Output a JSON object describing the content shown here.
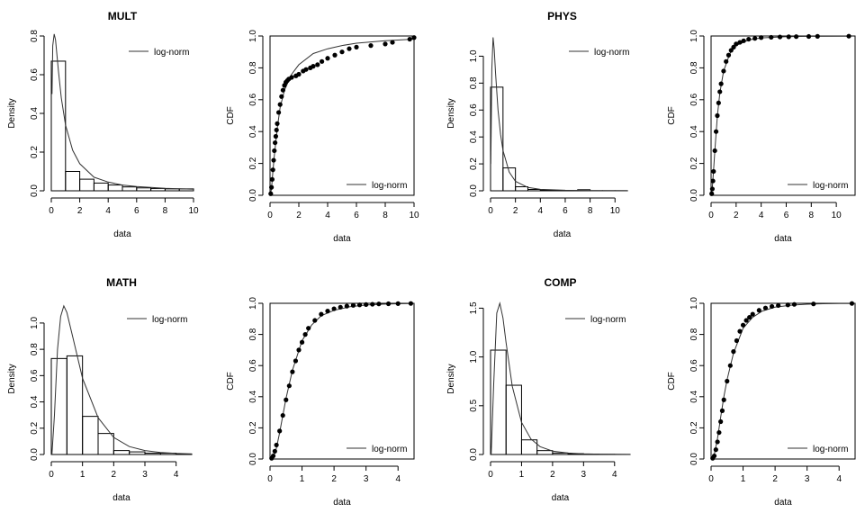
{
  "chart_data": [
    {
      "type": "bar",
      "title": "MULT",
      "xlabel": "data",
      "ylabel": "Density",
      "xlim": [
        0,
        10
      ],
      "ylim": [
        0,
        0.8
      ],
      "xticks": [
        0,
        2,
        4,
        6,
        8,
        10
      ],
      "yticks": [
        0,
        0.2,
        0.4,
        0.6,
        0.8
      ],
      "bin_edges": [
        0,
        1,
        2,
        3,
        4,
        5,
        6,
        7,
        8,
        9,
        10
      ],
      "values": [
        0.67,
        0.1,
        0.06,
        0.04,
        0.03,
        0.02,
        0.015,
        0.012,
        0.01,
        0.01
      ],
      "legend": "log-norm",
      "legend_position": "top-right",
      "curve": {
        "x": [
          0.05,
          0.1,
          0.2,
          0.3,
          0.5,
          0.7,
          1,
          1.5,
          2,
          3,
          4,
          5,
          6,
          8,
          10
        ],
        "y": [
          0.5,
          0.75,
          0.81,
          0.78,
          0.62,
          0.48,
          0.34,
          0.21,
          0.14,
          0.07,
          0.045,
          0.03,
          0.022,
          0.013,
          0.008
        ]
      }
    },
    {
      "type": "scatter",
      "xlabel": "data",
      "ylabel": "CDF",
      "xlim": [
        0,
        10
      ],
      "ylim": [
        0,
        1
      ],
      "xticks": [
        0,
        2,
        4,
        6,
        8,
        10
      ],
      "yticks": [
        0,
        0.2,
        0.4,
        0.6,
        0.8,
        1.0
      ],
      "legend": "log-norm",
      "legend_position": "bottom-right",
      "points": {
        "x": [
          0.05,
          0.1,
          0.15,
          0.2,
          0.25,
          0.3,
          0.35,
          0.4,
          0.45,
          0.5,
          0.6,
          0.7,
          0.8,
          0.9,
          1.0,
          1.1,
          1.2,
          1.3,
          1.5,
          1.8,
          2.0,
          2.3,
          2.5,
          2.8,
          3.0,
          3.3,
          3.6,
          4.0,
          4.5,
          5.0,
          5.5,
          6.0,
          7.0,
          8.0,
          8.5,
          9.7,
          10.0
        ],
        "y": [
          0.01,
          0.05,
          0.1,
          0.16,
          0.22,
          0.28,
          0.33,
          0.37,
          0.41,
          0.45,
          0.52,
          0.57,
          0.62,
          0.66,
          0.69,
          0.71,
          0.72,
          0.73,
          0.74,
          0.75,
          0.76,
          0.78,
          0.79,
          0.8,
          0.81,
          0.82,
          0.84,
          0.86,
          0.88,
          0.9,
          0.92,
          0.93,
          0.94,
          0.95,
          0.96,
          0.98,
          0.99
        ]
      },
      "curve": {
        "x": [
          0.01,
          0.1,
          0.2,
          0.3,
          0.5,
          0.7,
          1,
          1.5,
          2,
          3,
          4,
          5,
          6,
          8,
          10
        ],
        "y": [
          0,
          0.04,
          0.15,
          0.25,
          0.42,
          0.55,
          0.66,
          0.76,
          0.82,
          0.89,
          0.92,
          0.94,
          0.955,
          0.97,
          0.98
        ]
      }
    },
    {
      "type": "bar",
      "title": "PHYS",
      "xlabel": "data",
      "ylabel": "Density",
      "xlim": [
        0,
        11.5
      ],
      "ylim": [
        0,
        1.15
      ],
      "xticks": [
        0,
        2,
        4,
        6,
        8,
        10
      ],
      "yticks": [
        0,
        0.2,
        0.4,
        0.6,
        0.8,
        1.0
      ],
      "bin_edges": [
        0,
        1,
        2,
        3,
        4,
        5,
        6,
        7,
        8,
        9,
        10,
        11
      ],
      "values": [
        0.77,
        0.17,
        0.03,
        0.01,
        0.005,
        0.003,
        0.002,
        0.008,
        0.001,
        0.001,
        0.001
      ],
      "legend": "log-norm",
      "legend_position": "top-right",
      "curve": {
        "x": [
          0.02,
          0.1,
          0.2,
          0.3,
          0.4,
          0.6,
          0.8,
          1,
          1.5,
          2,
          3,
          4,
          6,
          8,
          11
        ],
        "y": [
          0.2,
          0.9,
          1.14,
          1.05,
          0.88,
          0.6,
          0.42,
          0.3,
          0.14,
          0.07,
          0.025,
          0.011,
          0.004,
          0.002,
          0.001
        ]
      }
    },
    {
      "type": "scatter",
      "xlabel": "data",
      "ylabel": "CDF",
      "xlim": [
        0,
        11.5
      ],
      "ylim": [
        0,
        1
      ],
      "xticks": [
        0,
        2,
        4,
        6,
        8,
        10
      ],
      "yticks": [
        0,
        0.2,
        0.4,
        0.6,
        0.8,
        1.0
      ],
      "legend": "log-norm",
      "legend_position": "bottom-right",
      "points": {
        "x": [
          0.05,
          0.1,
          0.15,
          0.2,
          0.3,
          0.4,
          0.5,
          0.6,
          0.7,
          0.8,
          1.0,
          1.2,
          1.4,
          1.6,
          1.8,
          2.0,
          2.3,
          2.6,
          3.0,
          3.5,
          4.0,
          4.8,
          5.5,
          6.2,
          6.8,
          7.8,
          8.5,
          11.0
        ],
        "y": [
          0.01,
          0.04,
          0.09,
          0.15,
          0.28,
          0.4,
          0.5,
          0.58,
          0.65,
          0.7,
          0.78,
          0.84,
          0.88,
          0.91,
          0.93,
          0.95,
          0.96,
          0.97,
          0.98,
          0.985,
          0.99,
          0.992,
          0.994,
          0.995,
          0.996,
          0.997,
          0.998,
          0.999
        ]
      },
      "curve": {
        "x": [
          0.01,
          0.1,
          0.2,
          0.3,
          0.5,
          0.7,
          1,
          1.5,
          2,
          3,
          4,
          6,
          8,
          11
        ],
        "y": [
          0,
          0.05,
          0.16,
          0.28,
          0.5,
          0.64,
          0.78,
          0.89,
          0.94,
          0.975,
          0.988,
          0.996,
          0.998,
          0.999
        ]
      }
    },
    {
      "type": "bar",
      "title": "MATH",
      "xlabel": "data",
      "ylabel": "Density",
      "xlim": [
        0,
        4.5
      ],
      "ylim": [
        0,
        1.15
      ],
      "xticks": [
        0,
        1,
        2,
        3,
        4
      ],
      "yticks": [
        0,
        0.2,
        0.4,
        0.6,
        0.8,
        1.0
      ],
      "bin_edges": [
        0,
        0.5,
        1,
        1.5,
        2,
        2.5,
        3,
        3.5,
        4,
        4.5
      ],
      "values": [
        0.73,
        0.75,
        0.29,
        0.16,
        0.03,
        0.02,
        0.01,
        0.01,
        0.004
      ],
      "legend": "log-norm",
      "legend_position": "top-right",
      "curve": {
        "x": [
          0.02,
          0.1,
          0.2,
          0.3,
          0.4,
          0.5,
          0.7,
          1,
          1.5,
          2,
          2.5,
          3,
          3.5,
          4,
          4.5
        ],
        "y": [
          0,
          0.3,
          0.8,
          1.05,
          1.13,
          1.08,
          0.88,
          0.58,
          0.28,
          0.13,
          0.06,
          0.03,
          0.015,
          0.008,
          0.004
        ]
      }
    },
    {
      "type": "scatter",
      "xlabel": "data",
      "ylabel": "CDF",
      "xlim": [
        0,
        4.5
      ],
      "ylim": [
        0,
        1
      ],
      "xticks": [
        0,
        1,
        2,
        3,
        4
      ],
      "yticks": [
        0,
        0.2,
        0.4,
        0.6,
        0.8,
        1.0
      ],
      "legend": "log-norm",
      "legend_position": "bottom-right",
      "points": {
        "x": [
          0.05,
          0.1,
          0.15,
          0.2,
          0.3,
          0.4,
          0.5,
          0.6,
          0.7,
          0.8,
          0.9,
          1.0,
          1.1,
          1.2,
          1.4,
          1.6,
          1.8,
          2.0,
          2.2,
          2.4,
          2.6,
          2.8,
          3.0,
          3.2,
          3.4,
          3.7,
          4.0,
          4.4
        ],
        "y": [
          0.005,
          0.02,
          0.05,
          0.09,
          0.18,
          0.28,
          0.38,
          0.47,
          0.56,
          0.63,
          0.7,
          0.75,
          0.8,
          0.84,
          0.89,
          0.93,
          0.95,
          0.965,
          0.975,
          0.982,
          0.987,
          0.99,
          0.992,
          0.994,
          0.996,
          0.997,
          0.998,
          0.999
        ]
      },
      "curve": {
        "x": [
          0.02,
          0.1,
          0.2,
          0.3,
          0.4,
          0.5,
          0.7,
          1,
          1.3,
          1.6,
          2,
          2.5,
          3,
          3.5,
          4,
          4.5
        ],
        "y": [
          0,
          0.01,
          0.07,
          0.17,
          0.28,
          0.39,
          0.57,
          0.76,
          0.86,
          0.92,
          0.955,
          0.978,
          0.989,
          0.994,
          0.997,
          0.998
        ]
      }
    },
    {
      "type": "bar",
      "title": "COMP",
      "xlabel": "data",
      "ylabel": "Density",
      "xlim": [
        0,
        4.5
      ],
      "ylim": [
        0,
        1.55
      ],
      "xticks": [
        0,
        1,
        2,
        3,
        4
      ],
      "yticks": [
        0,
        0.5,
        1.0,
        1.5
      ],
      "bin_edges": [
        0,
        0.5,
        1,
        1.5,
        2,
        2.5,
        3,
        3.5,
        4,
        4.5
      ],
      "values": [
        1.07,
        0.71,
        0.15,
        0.04,
        0.015,
        0.008,
        0.004,
        0.002,
        0.001
      ],
      "legend": "log-norm",
      "legend_position": "top-right",
      "curve": {
        "x": [
          0.02,
          0.1,
          0.2,
          0.3,
          0.4,
          0.5,
          0.7,
          1,
          1.3,
          1.6,
          2,
          2.5,
          3,
          3.5,
          4,
          4.5
        ],
        "y": [
          0,
          0.7,
          1.45,
          1.55,
          1.4,
          1.15,
          0.7,
          0.33,
          0.16,
          0.08,
          0.035,
          0.015,
          0.007,
          0.004,
          0.002,
          0.001
        ]
      }
    },
    {
      "type": "scatter",
      "xlabel": "data",
      "ylabel": "CDF",
      "xlim": [
        0,
        4.5
      ],
      "ylim": [
        0,
        1
      ],
      "xticks": [
        0,
        1,
        2,
        3,
        4
      ],
      "yticks": [
        0,
        0.2,
        0.4,
        0.6,
        0.8,
        1.0
      ],
      "legend": "log-norm",
      "legend_position": "bottom-right",
      "points": {
        "x": [
          0.05,
          0.1,
          0.15,
          0.2,
          0.25,
          0.3,
          0.35,
          0.4,
          0.5,
          0.6,
          0.7,
          0.8,
          0.9,
          1.0,
          1.1,
          1.2,
          1.3,
          1.5,
          1.7,
          1.9,
          2.1,
          2.4,
          2.6,
          3.2,
          4.4
        ],
        "y": [
          0.005,
          0.02,
          0.06,
          0.11,
          0.17,
          0.24,
          0.31,
          0.38,
          0.5,
          0.6,
          0.69,
          0.76,
          0.82,
          0.86,
          0.89,
          0.91,
          0.93,
          0.955,
          0.97,
          0.98,
          0.986,
          0.99,
          0.993,
          0.996,
          0.999
        ]
      },
      "curve": {
        "x": [
          0.02,
          0.1,
          0.2,
          0.3,
          0.4,
          0.5,
          0.7,
          1,
          1.3,
          1.6,
          2,
          2.5,
          3,
          3.5,
          4,
          4.5
        ],
        "y": [
          0,
          0.03,
          0.13,
          0.27,
          0.4,
          0.51,
          0.68,
          0.84,
          0.91,
          0.95,
          0.975,
          0.988,
          0.994,
          0.997,
          0.998,
          0.999
        ]
      }
    }
  ]
}
